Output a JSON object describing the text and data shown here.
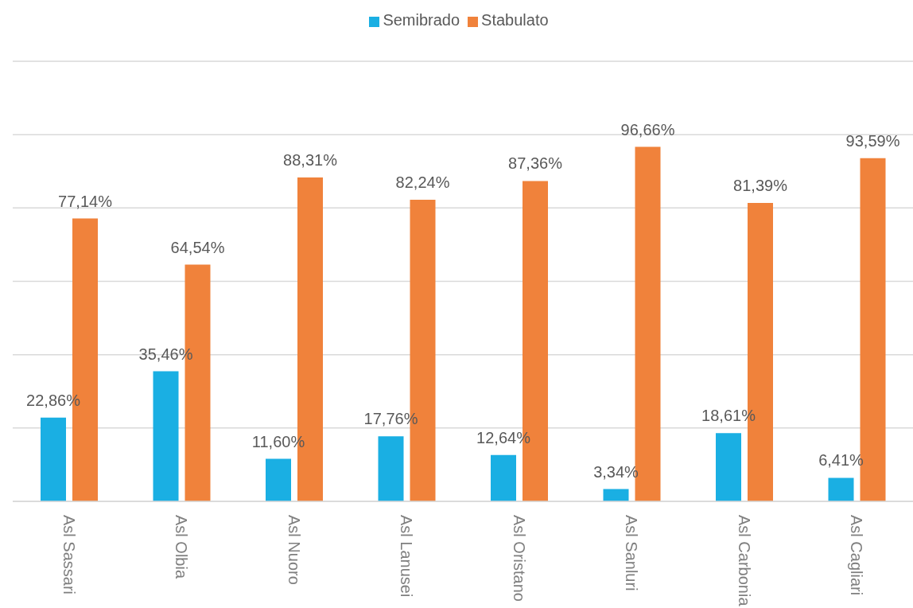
{
  "chart_data": {
    "type": "bar",
    "categories": [
      "Asl Sassari",
      "Asl Olbia",
      "Asl Nuoro",
      "Asl Lanusei",
      "Asl Oristano",
      "Asl Sanluri",
      "Asl Carbonia",
      "Asl Cagliari"
    ],
    "series": [
      {
        "name": "Semibrado",
        "color": "#1aafe3",
        "values": [
          22.86,
          35.46,
          11.6,
          17.76,
          12.64,
          3.34,
          18.61,
          6.41
        ],
        "value_labels": [
          "22,86%",
          "35,46%",
          "11,60%",
          "17,76%",
          "12,64%",
          "3,34%",
          "18,61%",
          "6,41%"
        ]
      },
      {
        "name": "Stabulato",
        "color": "#f0823b",
        "values": [
          77.14,
          64.54,
          88.31,
          82.24,
          87.36,
          96.66,
          81.39,
          93.59
        ],
        "value_labels": [
          "77,14%",
          "64,54%",
          "88,31%",
          "82,24%",
          "87,36%",
          "96,66%",
          "81,39%",
          "93,59%"
        ]
      }
    ],
    "ylim": [
      0,
      120
    ],
    "yticks": [
      {
        "value": 0,
        "label": null
      },
      {
        "value": 20,
        "label": null
      },
      {
        "value": 40,
        "label": null
      },
      {
        "value": 60,
        "label": null
      },
      {
        "value": 80,
        "label": null
      },
      {
        "value": 100,
        "label": null
      },
      {
        "value": 120,
        "label": null
      }
    ],
    "tick_labels": "x",
    "grid": "y",
    "legend": "top"
  }
}
